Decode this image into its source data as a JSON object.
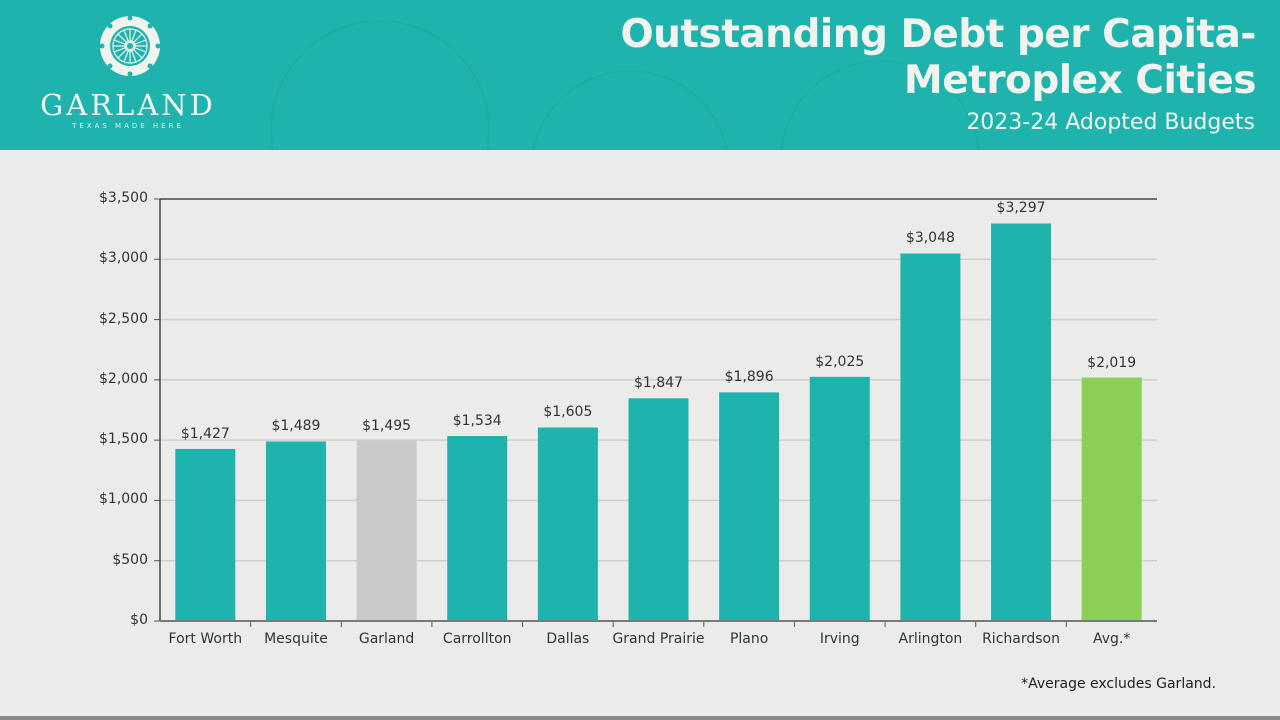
{
  "header": {
    "logo": {
      "icon": "garland-flower-emblem-icon",
      "name": "GARLAND",
      "tagline": "TEXAS MADE HERE"
    },
    "title_line1": "Outstanding Debt per Capita-",
    "title_line2": "Metroplex Cities",
    "subtitle": "2023-24 Adopted Budgets",
    "background_color": "#1fb3ad"
  },
  "colors": {
    "city_bar": "#1fb3ad",
    "garland_bar": "#c9c9c7",
    "average_bar": "#8ccf55",
    "background": "#ebebea"
  },
  "footnote": "*Average excludes Garland.",
  "y_ticks": [
    "$3,500",
    "$3,000",
    "$2,500",
    "$2,000",
    "$1,500",
    "$1,000",
    "$500",
    "$0"
  ],
  "chart_data": {
    "type": "bar",
    "title": "Outstanding Debt per Capita- Metroplex Cities",
    "subtitle": "2023-24 Adopted Budgets",
    "xlabel": "",
    "ylabel": "",
    "ylim": [
      0,
      3500
    ],
    "y_tick_step": 500,
    "grid": true,
    "legend": "none",
    "categories": [
      "Fort Worth",
      "Mesquite",
      "Garland",
      "Carrollton",
      "Dallas",
      "Grand Prairie",
      "Plano",
      "Irving",
      "Arlington",
      "Richardson",
      "Avg.*"
    ],
    "values": [
      1427,
      1489,
      1495,
      1534,
      1605,
      1847,
      1896,
      2025,
      3048,
      3297,
      2019
    ],
    "value_labels": [
      "$1,427",
      "$1,489",
      "$1,495",
      "$1,534",
      "$1,605",
      "$1,847",
      "$1,896",
      "$2,025",
      "$3,048",
      "$3,297",
      "$2,019"
    ],
    "bar_colors": [
      "#1fb3ad",
      "#1fb3ad",
      "#c9c9c7",
      "#1fb3ad",
      "#1fb3ad",
      "#1fb3ad",
      "#1fb3ad",
      "#1fb3ad",
      "#1fb3ad",
      "#1fb3ad",
      "#8ccf55"
    ],
    "annotations": [
      "*Average excludes Garland."
    ]
  }
}
